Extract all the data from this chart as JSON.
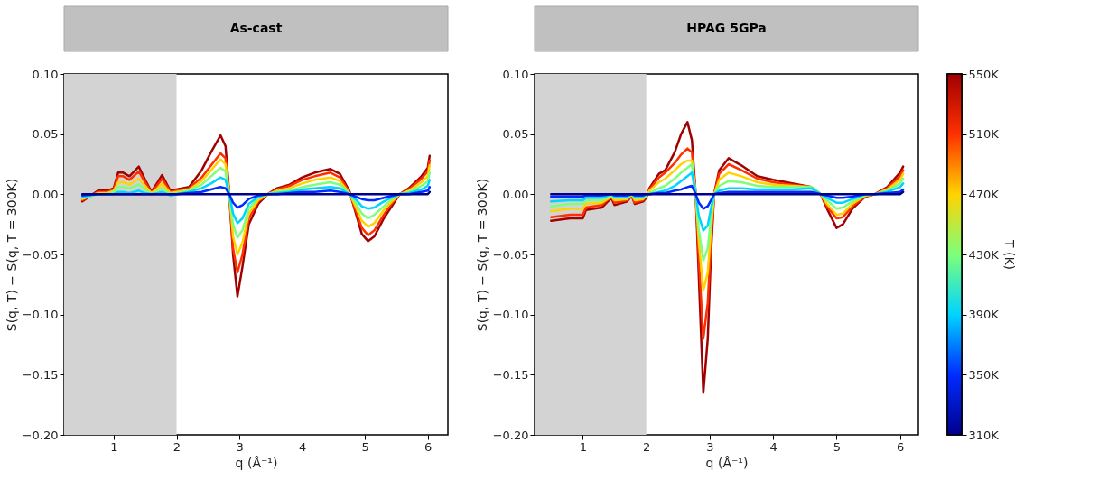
{
  "chart_data": [
    {
      "type": "line",
      "title": "As-cast",
      "xlabel": "q (Å⁻¹)",
      "ylabel": "S(q, T) − S(q, T = 300K)",
      "xlim": [
        0.21,
        6.32
      ],
      "ylim": [
        -0.2,
        0.1
      ],
      "xticks": [
        1,
        2,
        3,
        4,
        5,
        6
      ],
      "yticks": [
        {
          "value": 0.1,
          "label": "0.10"
        },
        {
          "value": 0.05,
          "label": "0.05"
        },
        {
          "value": 0,
          "label": "0.00"
        },
        {
          "value": -0.05,
          "label": "−0.05"
        },
        {
          "value": -0.1,
          "label": "−0.10"
        },
        {
          "value": -0.15,
          "label": "−0.15"
        },
        {
          "value": -0.2,
          "label": "−0.20"
        }
      ],
      "bands": [
        {
          "axis": "x",
          "from": 0.21,
          "to": 2,
          "color": "#d3d3d3"
        }
      ],
      "x": [
        0.5,
        0.75,
        0.9,
        1.0,
        1.07,
        1.15,
        1.25,
        1.4,
        1.5,
        1.6,
        1.7,
        1.77,
        1.9,
        2.0,
        2.2,
        2.4,
        2.55,
        2.7,
        2.78,
        2.84,
        2.9,
        2.97,
        3.05,
        3.15,
        3.3,
        3.45,
        3.6,
        3.8,
        4.0,
        4.2,
        4.45,
        4.6,
        4.75,
        4.85,
        4.95,
        5.05,
        5.15,
        5.3,
        5.45,
        5.55,
        5.7,
        5.9,
        6.0,
        6.03
      ],
      "series": [
        {
          "color": "#00008b",
          "values": [
            0,
            0,
            0,
            0,
            0,
            0,
            0,
            0,
            0,
            0,
            0,
            0,
            0,
            0,
            0,
            0,
            0,
            0,
            0,
            0,
            0,
            0,
            0,
            0,
            0,
            0,
            0,
            0,
            0,
            0,
            0,
            0,
            0,
            0,
            0,
            0,
            0,
            0,
            0,
            0,
            0,
            0,
            0,
            0.002
          ]
        },
        {
          "color": "#002cff",
          "values": [
            -0.001,
            0,
            0,
            0,
            0,
            0,
            0,
            0,
            0,
            0,
            0,
            0,
            0,
            0,
            0.001,
            0.002,
            0.004,
            0.006,
            0.005,
            0,
            -0.007,
            -0.011,
            -0.009,
            -0.004,
            -0.001,
            0,
            0,
            0.001,
            0.002,
            0.002,
            0.003,
            0.002,
            0,
            -0.002,
            -0.004,
            -0.005,
            -0.005,
            -0.003,
            -0.001,
            0,
            0,
            0.002,
            0.003,
            0.006
          ]
        },
        {
          "color": "#00d4ff",
          "values": [
            -0.002,
            0,
            0,
            0,
            0.002,
            0.002,
            0.001,
            0.003,
            0.001,
            0,
            0.001,
            0.002,
            -0.001,
            0,
            0.002,
            0.005,
            0.009,
            0.014,
            0.012,
            0,
            -0.016,
            -0.024,
            -0.02,
            -0.008,
            -0.002,
            0,
            0.001,
            0.002,
            0.004,
            0.005,
            0.006,
            0.005,
            0,
            -0.004,
            -0.01,
            -0.012,
            -0.011,
            -0.006,
            -0.002,
            0,
            0.001,
            0.004,
            0.007,
            0.012
          ]
        },
        {
          "color": "#7dff7a",
          "values": [
            -0.003,
            0,
            0,
            0.002,
            0.006,
            0.006,
            0.005,
            0.008,
            0.004,
            0,
            0.003,
            0.005,
            0,
            0.001,
            0.003,
            0.008,
            0.015,
            0.022,
            0.019,
            0,
            -0.025,
            -0.036,
            -0.03,
            -0.012,
            -0.003,
            0,
            0.002,
            0.003,
            0.006,
            0.008,
            0.01,
            0.008,
            0.001,
            -0.007,
            -0.016,
            -0.02,
            -0.017,
            -0.01,
            -0.003,
            0,
            0.002,
            0.007,
            0.011,
            0.018
          ]
        },
        {
          "color": "#ffd300",
          "values": [
            -0.004,
            0.001,
            0.001,
            0.003,
            0.01,
            0.01,
            0.008,
            0.013,
            0.007,
            0.001,
            0.005,
            0.009,
            0.001,
            0.002,
            0.004,
            0.011,
            0.02,
            0.029,
            0.025,
            0,
            -0.035,
            -0.05,
            -0.04,
            -0.016,
            -0.005,
            0,
            0.003,
            0.005,
            0.009,
            0.012,
            0.014,
            0.011,
            0.001,
            -0.01,
            -0.022,
            -0.027,
            -0.024,
            -0.013,
            -0.005,
            0,
            0.003,
            0.01,
            0.015,
            0.024
          ]
        },
        {
          "color": "#ff3000",
          "values": [
            -0.005,
            0.002,
            0.002,
            0.004,
            0.015,
            0.015,
            0.012,
            0.019,
            0.01,
            0.001,
            0.008,
            0.013,
            0.002,
            0.003,
            0.005,
            0.014,
            0.024,
            0.034,
            0.03,
            0,
            -0.045,
            -0.065,
            -0.05,
            -0.02,
            -0.006,
            0,
            0.004,
            0.007,
            0.012,
            0.015,
            0.018,
            0.014,
            0.002,
            -0.013,
            -0.028,
            -0.034,
            -0.03,
            -0.017,
            -0.006,
            0,
            0.004,
            0.013,
            0.019,
            0.028
          ]
        },
        {
          "color": "#a00000",
          "values": [
            -0.006,
            0.003,
            0.003,
            0.005,
            0.018,
            0.018,
            0.015,
            0.023,
            0.012,
            0.002,
            0.01,
            0.016,
            0.003,
            0.004,
            0.006,
            0.02,
            0.035,
            0.049,
            0.04,
            0,
            -0.05,
            -0.085,
            -0.06,
            -0.025,
            -0.008,
            0,
            0.005,
            0.008,
            0.014,
            0.018,
            0.021,
            0.017,
            0.003,
            -0.015,
            -0.033,
            -0.039,
            -0.035,
            -0.02,
            -0.008,
            0,
            0.005,
            0.015,
            0.022,
            0.032
          ]
        }
      ]
    },
    {
      "type": "line",
      "title": "HPAG 5GPa",
      "xlabel": "q (Å⁻¹)",
      "ylabel": "S(q, T) − S(q, T = 300K)",
      "xlim": [
        0.24,
        6.29
      ],
      "ylim": [
        -0.2,
        0.1
      ],
      "xticks": [
        1,
        2,
        3,
        4,
        5,
        6
      ],
      "yticks": [
        {
          "value": 0.1,
          "label": "0.10"
        },
        {
          "value": 0.05,
          "label": "0.05"
        },
        {
          "value": 0,
          "label": "0.00"
        },
        {
          "value": -0.05,
          "label": "−0.05"
        },
        {
          "value": -0.1,
          "label": "−0.10"
        },
        {
          "value": -0.15,
          "label": "−0.15"
        },
        {
          "value": -0.2,
          "label": "−0.20"
        }
      ],
      "bands": [
        {
          "axis": "x",
          "from": 0.24,
          "to": 2,
          "color": "#d3d3d3"
        }
      ],
      "clabel": "T (K)",
      "clim": [
        310,
        550
      ],
      "cticks": [
        {
          "value": 310,
          "label": "310K"
        },
        {
          "value": 350,
          "label": "350K"
        },
        {
          "value": 390,
          "label": "390K"
        },
        {
          "value": 430,
          "label": "430K"
        },
        {
          "value": 470,
          "label": "470K"
        },
        {
          "value": 510,
          "label": "510K"
        },
        {
          "value": 550,
          "label": "550K"
        }
      ],
      "x": [
        0.5,
        0.8,
        1.0,
        1.05,
        1.3,
        1.45,
        1.5,
        1.7,
        1.77,
        1.82,
        1.95,
        2.0,
        2.05,
        2.2,
        2.3,
        2.45,
        2.55,
        2.65,
        2.72,
        2.78,
        2.83,
        2.9,
        2.97,
        3.02,
        3.07,
        3.15,
        3.3,
        3.5,
        3.75,
        4.0,
        4.3,
        4.6,
        4.75,
        4.85,
        5.0,
        5.1,
        5.25,
        5.45,
        5.6,
        5.8,
        6.0,
        6.05
      ],
      "series": [
        {
          "color": "#00008b",
          "values": [
            0,
            0,
            0,
            0,
            0,
            0,
            0,
            0,
            0,
            0,
            0,
            0,
            0,
            0,
            0,
            0,
            0,
            0,
            0,
            0,
            0,
            0,
            0,
            0,
            0,
            0,
            0,
            0,
            0,
            0,
            0,
            0,
            0,
            0,
            0,
            0,
            0,
            0,
            0,
            0,
            0,
            0.002
          ]
        },
        {
          "color": "#002cff",
          "values": [
            -0.002,
            -0.002,
            -0.002,
            -0.001,
            -0.001,
            0,
            -0.001,
            -0.001,
            0,
            -0.001,
            -0.001,
            0,
            0,
            0.001,
            0.001,
            0.003,
            0.004,
            0.006,
            0.007,
            0,
            -0.007,
            -0.012,
            -0.01,
            -0.005,
            0,
            0.001,
            0.002,
            0.002,
            0.002,
            0.002,
            0.002,
            0.002,
            0,
            -0.001,
            -0.003,
            -0.003,
            -0.002,
            0,
            0,
            0.001,
            0.002,
            0.004
          ]
        },
        {
          "color": "#00d4ff",
          "values": [
            -0.006,
            -0.005,
            -0.005,
            -0.003,
            -0.003,
            0,
            -0.002,
            -0.002,
            0,
            -0.002,
            -0.002,
            0,
            0,
            0.002,
            0.003,
            0.007,
            0.011,
            0.015,
            0.018,
            0,
            -0.018,
            -0.03,
            -0.026,
            -0.012,
            0,
            0.003,
            0.005,
            0.005,
            0.004,
            0.004,
            0.004,
            0.005,
            0,
            -0.003,
            -0.007,
            -0.007,
            -0.004,
            0,
            0,
            0.002,
            0.006,
            0.009
          ]
        },
        {
          "color": "#7dff7a",
          "values": [
            -0.01,
            -0.008,
            -0.008,
            -0.005,
            -0.005,
            -0.001,
            -0.003,
            -0.003,
            0,
            -0.003,
            -0.003,
            -0.001,
            0.001,
            0.005,
            0.007,
            0.013,
            0.018,
            0.022,
            0.025,
            0,
            -0.03,
            -0.055,
            -0.045,
            -0.02,
            0,
            0.007,
            0.011,
            0.01,
            0.007,
            0.006,
            0.006,
            0.006,
            0,
            -0.005,
            -0.012,
            -0.011,
            -0.006,
            -0.001,
            0,
            0.003,
            0.009,
            0.013
          ]
        },
        {
          "color": "#ffd300",
          "values": [
            -0.014,
            -0.012,
            -0.012,
            -0.008,
            -0.007,
            -0.002,
            -0.005,
            -0.004,
            0,
            -0.005,
            -0.004,
            -0.001,
            0.003,
            0.01,
            0.013,
            0.02,
            0.025,
            0.028,
            0.028,
            0,
            -0.04,
            -0.08,
            -0.065,
            -0.03,
            0,
            0.012,
            0.018,
            0.015,
            0.01,
            0.008,
            0.007,
            0.006,
            0,
            -0.008,
            -0.017,
            -0.016,
            -0.008,
            -0.001,
            0,
            0.004,
            0.012,
            0.017
          ]
        },
        {
          "color": "#ff3000",
          "values": [
            -0.019,
            -0.017,
            -0.017,
            -0.011,
            -0.009,
            -0.002,
            -0.007,
            -0.005,
            -0.001,
            -0.007,
            -0.005,
            -0.002,
            0.004,
            0.014,
            0.018,
            0.026,
            0.033,
            0.038,
            0.035,
            0,
            -0.055,
            -0.12,
            -0.09,
            -0.04,
            0,
            0.017,
            0.025,
            0.02,
            0.013,
            0.01,
            0.008,
            0.006,
            0,
            -0.01,
            -0.02,
            -0.019,
            -0.01,
            -0.002,
            0,
            0.005,
            0.015,
            0.02
          ]
        },
        {
          "color": "#a00000",
          "values": [
            -0.022,
            -0.02,
            -0.02,
            -0.013,
            -0.011,
            -0.003,
            -0.009,
            -0.006,
            -0.001,
            -0.008,
            -0.006,
            -0.003,
            0.005,
            0.017,
            0.02,
            0.035,
            0.05,
            0.06,
            0.045,
            0,
            -0.07,
            -0.165,
            -0.12,
            -0.05,
            0,
            0.02,
            0.03,
            0.024,
            0.015,
            0.012,
            0.009,
            0.006,
            0,
            -0.012,
            -0.028,
            -0.025,
            -0.012,
            -0.002,
            0,
            0.006,
            0.018,
            0.023
          ]
        }
      ]
    }
  ]
}
